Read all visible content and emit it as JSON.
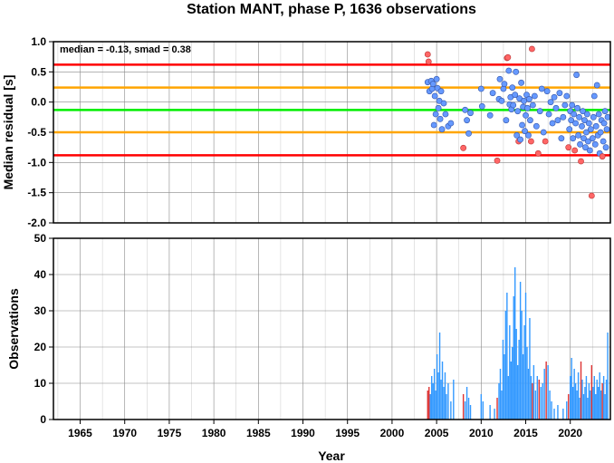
{
  "chart_data": [
    {
      "type": "scatter",
      "title": "Station MANT, phase P, 1636 observations",
      "ylabel": "Median residual [s]",
      "ylim": [
        -2.0,
        1.0
      ],
      "xlim": [
        1962,
        2024.5
      ],
      "y_ticks": [
        "-2.0",
        "-1.5",
        "-1.0",
        "-0.5",
        "0.0",
        "0.5",
        "1.0"
      ],
      "annotation": "median = -0.13, smad = 0.38",
      "grid": true,
      "lines": [
        {
          "value": 0.62,
          "color": "#ff0000"
        },
        {
          "value": 0.24,
          "color": "#ffa500"
        },
        {
          "value": -0.13,
          "color": "#00ee00"
        },
        {
          "value": -0.5,
          "color": "#ffa500"
        },
        {
          "value": -0.88,
          "color": "#ff0000"
        }
      ],
      "colors": {
        "inlier": "#6699ff",
        "outlier": "#ff6666"
      },
      "points": [
        {
          "x": 2004.0,
          "y": 0.79,
          "outlier": true
        },
        {
          "x": 2004.1,
          "y": 0.67,
          "outlier": true
        },
        {
          "x": 2004.0,
          "y": 0.33
        },
        {
          "x": 2004.2,
          "y": 0.18
        },
        {
          "x": 2004.4,
          "y": 0.35
        },
        {
          "x": 2004.5,
          "y": 0.22
        },
        {
          "x": 2004.6,
          "y": 0.3
        },
        {
          "x": 2004.7,
          "y": -0.38
        },
        {
          "x": 2004.8,
          "y": 0.1
        },
        {
          "x": 2004.9,
          "y": -0.2
        },
        {
          "x": 2005.0,
          "y": 0.38
        },
        {
          "x": 2005.1,
          "y": 0.23
        },
        {
          "x": 2005.2,
          "y": -0.1
        },
        {
          "x": 2005.3,
          "y": 0.02
        },
        {
          "x": 2005.4,
          "y": -0.28
        },
        {
          "x": 2005.5,
          "y": 0.18
        },
        {
          "x": 2005.6,
          "y": -0.45
        },
        {
          "x": 2005.8,
          "y": -0.02
        },
        {
          "x": 2006.0,
          "y": -0.2
        },
        {
          "x": 2006.3,
          "y": -0.4
        },
        {
          "x": 2006.6,
          "y": -0.35
        },
        {
          "x": 2008.0,
          "y": -0.76,
          "outlier": true
        },
        {
          "x": 2008.2,
          "y": -0.13
        },
        {
          "x": 2008.4,
          "y": -0.3
        },
        {
          "x": 2008.6,
          "y": -0.52
        },
        {
          "x": 2008.8,
          "y": -0.18
        },
        {
          "x": 2010.0,
          "y": 0.22
        },
        {
          "x": 2010.1,
          "y": -0.07
        },
        {
          "x": 2011.0,
          "y": -0.22
        },
        {
          "x": 2011.3,
          "y": 0.15
        },
        {
          "x": 2011.8,
          "y": -0.97,
          "outlier": true
        },
        {
          "x": 2012.0,
          "y": 0.05
        },
        {
          "x": 2012.1,
          "y": 0.38
        },
        {
          "x": 2012.3,
          "y": 0.02
        },
        {
          "x": 2012.5,
          "y": 0.22
        },
        {
          "x": 2012.6,
          "y": 0.3
        },
        {
          "x": 2012.8,
          "y": -0.3
        },
        {
          "x": 2012.9,
          "y": 0.73,
          "outlier": true
        },
        {
          "x": 2013.0,
          "y": 0.74,
          "outlier": true
        },
        {
          "x": 2013.1,
          "y": 0.52
        },
        {
          "x": 2013.2,
          "y": -0.04
        },
        {
          "x": 2013.3,
          "y": 0.08
        },
        {
          "x": 2013.4,
          "y": -0.12
        },
        {
          "x": 2013.5,
          "y": 0.24
        },
        {
          "x": 2013.6,
          "y": -0.05
        },
        {
          "x": 2013.8,
          "y": 0.12
        },
        {
          "x": 2013.9,
          "y": 0.5
        },
        {
          "x": 2014.0,
          "y": -0.55
        },
        {
          "x": 2014.1,
          "y": -0.15
        },
        {
          "x": 2014.2,
          "y": -0.65,
          "outlier": true
        },
        {
          "x": 2014.3,
          "y": 0.06
        },
        {
          "x": 2014.4,
          "y": -0.62
        },
        {
          "x": 2014.5,
          "y": 0.32
        },
        {
          "x": 2014.6,
          "y": -0.38
        },
        {
          "x": 2014.7,
          "y": -0.08
        },
        {
          "x": 2014.8,
          "y": 0.02
        },
        {
          "x": 2014.9,
          "y": -0.48
        },
        {
          "x": 2015.0,
          "y": -0.22
        },
        {
          "x": 2015.1,
          "y": 0.12
        },
        {
          "x": 2015.2,
          "y": -0.1
        },
        {
          "x": 2015.3,
          "y": -0.55
        },
        {
          "x": 2015.4,
          "y": 0.05
        },
        {
          "x": 2015.5,
          "y": -0.3
        },
        {
          "x": 2015.6,
          "y": -0.65,
          "outlier": true
        },
        {
          "x": 2015.7,
          "y": 0.88,
          "outlier": true
        },
        {
          "x": 2015.8,
          "y": -0.05
        },
        {
          "x": 2016.0,
          "y": 0.1
        },
        {
          "x": 2016.2,
          "y": -0.4
        },
        {
          "x": 2016.4,
          "y": -0.85,
          "outlier": true
        },
        {
          "x": 2016.6,
          "y": -0.15
        },
        {
          "x": 2016.8,
          "y": 0.22
        },
        {
          "x": 2017.0,
          "y": -0.5
        },
        {
          "x": 2017.2,
          "y": -0.65,
          "outlier": true
        },
        {
          "x": 2017.4,
          "y": 0.18
        },
        {
          "x": 2017.6,
          "y": -0.2
        },
        {
          "x": 2017.8,
          "y": 0.0
        },
        {
          "x": 2018.0,
          "y": -0.35
        },
        {
          "x": 2018.2,
          "y": 0.08
        },
        {
          "x": 2018.4,
          "y": -0.1
        },
        {
          "x": 2018.6,
          "y": -0.3
        },
        {
          "x": 2018.8,
          "y": 0.15
        },
        {
          "x": 2019.0,
          "y": -0.6
        },
        {
          "x": 2019.2,
          "y": -0.25
        },
        {
          "x": 2019.4,
          "y": -0.05
        },
        {
          "x": 2019.6,
          "y": 0.1
        },
        {
          "x": 2019.8,
          "y": -0.75,
          "outlier": true
        },
        {
          "x": 2019.9,
          "y": -0.45
        },
        {
          "x": 2020.0,
          "y": -0.15
        },
        {
          "x": 2020.1,
          "y": -0.3
        },
        {
          "x": 2020.2,
          "y": -0.05
        },
        {
          "x": 2020.3,
          "y": -0.6
        },
        {
          "x": 2020.4,
          "y": -0.2
        },
        {
          "x": 2020.5,
          "y": -0.8,
          "outlier": true
        },
        {
          "x": 2020.6,
          "y": -0.35
        },
        {
          "x": 2020.7,
          "y": 0.45
        },
        {
          "x": 2020.8,
          "y": -0.1
        },
        {
          "x": 2020.9,
          "y": -0.55
        },
        {
          "x": 2021.0,
          "y": -0.25
        },
        {
          "x": 2021.1,
          "y": -0.7
        },
        {
          "x": 2021.2,
          "y": -0.98,
          "outlier": true
        },
        {
          "x": 2021.3,
          "y": -0.4
        },
        {
          "x": 2021.4,
          "y": -0.15
        },
        {
          "x": 2021.5,
          "y": -0.6
        },
        {
          "x": 2021.6,
          "y": -0.3
        },
        {
          "x": 2021.7,
          "y": -0.75
        },
        {
          "x": 2021.8,
          "y": -0.5
        },
        {
          "x": 2021.9,
          "y": -0.2
        },
        {
          "x": 2022.0,
          "y": -0.65
        },
        {
          "x": 2022.1,
          "y": -0.35
        },
        {
          "x": 2022.2,
          "y": -0.8
        },
        {
          "x": 2022.3,
          "y": -0.45
        },
        {
          "x": 2022.4,
          "y": -1.55,
          "outlier": true
        },
        {
          "x": 2022.5,
          "y": -0.6
        },
        {
          "x": 2022.6,
          "y": -0.25
        },
        {
          "x": 2022.7,
          "y": 0.1
        },
        {
          "x": 2022.8,
          "y": -0.7
        },
        {
          "x": 2022.9,
          "y": -0.4
        },
        {
          "x": 2023.0,
          "y": 0.28
        },
        {
          "x": 2023.1,
          "y": -0.55
        },
        {
          "x": 2023.2,
          "y": -0.2
        },
        {
          "x": 2023.3,
          "y": -0.85
        },
        {
          "x": 2023.4,
          "y": -0.5
        },
        {
          "x": 2023.5,
          "y": -0.3
        },
        {
          "x": 2023.6,
          "y": -0.9,
          "outlier": true
        },
        {
          "x": 2023.7,
          "y": -0.65
        },
        {
          "x": 2023.8,
          "y": -0.35
        },
        {
          "x": 2023.9,
          "y": -0.15
        },
        {
          "x": 2024.0,
          "y": -0.75
        },
        {
          "x": 2024.1,
          "y": -0.45
        },
        {
          "x": 2024.2,
          "y": -0.25
        }
      ]
    },
    {
      "type": "bar",
      "xlabel": "Year",
      "ylabel": "Observations",
      "ylim": [
        0,
        50
      ],
      "xlim": [
        1962,
        2024.5
      ],
      "y_ticks": [
        "0",
        "10",
        "20",
        "30",
        "40",
        "50"
      ],
      "x_ticks": [
        "1965",
        "1970",
        "1975",
        "1980",
        "1985",
        "1990",
        "1995",
        "2000",
        "2005",
        "2010",
        "2015",
        "2020"
      ],
      "grid": true,
      "colors": {
        "main": "#3399ff",
        "highlight": "#dd3333"
      },
      "bars": [
        {
          "x": 2004.0,
          "v": 8,
          "red": true
        },
        {
          "x": 2004.15,
          "v": 9,
          "red": true
        },
        {
          "x": 2004.3,
          "v": 7
        },
        {
          "x": 2004.45,
          "v": 12
        },
        {
          "x": 2004.6,
          "v": 10
        },
        {
          "x": 2004.75,
          "v": 14
        },
        {
          "x": 2004.9,
          "v": 8
        },
        {
          "x": 2005.05,
          "v": 18
        },
        {
          "x": 2005.2,
          "v": 13
        },
        {
          "x": 2005.35,
          "v": 24
        },
        {
          "x": 2005.5,
          "v": 11
        },
        {
          "x": 2005.65,
          "v": 16
        },
        {
          "x": 2005.8,
          "v": 9
        },
        {
          "x": 2005.95,
          "v": 13
        },
        {
          "x": 2006.1,
          "v": 7
        },
        {
          "x": 2006.3,
          "v": 10
        },
        {
          "x": 2006.6,
          "v": 5
        },
        {
          "x": 2006.9,
          "v": 11
        },
        {
          "x": 2008.0,
          "v": 7,
          "red": true
        },
        {
          "x": 2008.2,
          "v": 5
        },
        {
          "x": 2008.4,
          "v": 9
        },
        {
          "x": 2008.6,
          "v": 6
        },
        {
          "x": 2008.8,
          "v": 4
        },
        {
          "x": 2010.0,
          "v": 7
        },
        {
          "x": 2010.2,
          "v": 5
        },
        {
          "x": 2011.0,
          "v": 4
        },
        {
          "x": 2011.5,
          "v": 3
        },
        {
          "x": 2011.8,
          "v": 6,
          "red": true
        },
        {
          "x": 2012.0,
          "v": 10
        },
        {
          "x": 2012.15,
          "v": 14
        },
        {
          "x": 2012.3,
          "v": 8
        },
        {
          "x": 2012.45,
          "v": 22
        },
        {
          "x": 2012.6,
          "v": 18
        },
        {
          "x": 2012.75,
          "v": 30
        },
        {
          "x": 2012.9,
          "v": 35
        },
        {
          "x": 2013.05,
          "v": 12
        },
        {
          "x": 2013.2,
          "v": 26
        },
        {
          "x": 2013.35,
          "v": 16
        },
        {
          "x": 2013.5,
          "v": 20
        },
        {
          "x": 2013.65,
          "v": 34
        },
        {
          "x": 2013.8,
          "v": 42
        },
        {
          "x": 2013.95,
          "v": 25
        },
        {
          "x": 2014.1,
          "v": 15
        },
        {
          "x": 2014.25,
          "v": 22
        },
        {
          "x": 2014.4,
          "v": 38
        },
        {
          "x": 2014.55,
          "v": 30
        },
        {
          "x": 2014.7,
          "v": 18
        },
        {
          "x": 2014.85,
          "v": 26
        },
        {
          "x": 2015.0,
          "v": 35
        },
        {
          "x": 2015.15,
          "v": 20
        },
        {
          "x": 2015.3,
          "v": 14
        },
        {
          "x": 2015.45,
          "v": 28
        },
        {
          "x": 2015.6,
          "v": 12
        },
        {
          "x": 2015.75,
          "v": 10,
          "red": true
        },
        {
          "x": 2015.9,
          "v": 15
        },
        {
          "x": 2016.1,
          "v": 8
        },
        {
          "x": 2016.3,
          "v": 12
        },
        {
          "x": 2016.5,
          "v": 11,
          "red": true
        },
        {
          "x": 2016.7,
          "v": 9
        },
        {
          "x": 2016.9,
          "v": 10
        },
        {
          "x": 2017.1,
          "v": 14
        },
        {
          "x": 2017.3,
          "v": 16,
          "red": true
        },
        {
          "x": 2017.5,
          "v": 15
        },
        {
          "x": 2017.7,
          "v": 8
        },
        {
          "x": 2017.9,
          "v": 5
        },
        {
          "x": 2018.2,
          "v": 3
        },
        {
          "x": 2018.6,
          "v": 4
        },
        {
          "x": 2019.2,
          "v": 3
        },
        {
          "x": 2019.6,
          "v": 5
        },
        {
          "x": 2019.8,
          "v": 7,
          "red": true
        },
        {
          "x": 2020.0,
          "v": 12
        },
        {
          "x": 2020.15,
          "v": 17
        },
        {
          "x": 2020.3,
          "v": 9
        },
        {
          "x": 2020.45,
          "v": 14
        },
        {
          "x": 2020.6,
          "v": 10
        },
        {
          "x": 2020.75,
          "v": 8
        },
        {
          "x": 2020.9,
          "v": 13
        },
        {
          "x": 2021.05,
          "v": 6
        },
        {
          "x": 2021.2,
          "v": 16,
          "red": true
        },
        {
          "x": 2021.35,
          "v": 11
        },
        {
          "x": 2021.5,
          "v": 7
        },
        {
          "x": 2021.65,
          "v": 9
        },
        {
          "x": 2021.8,
          "v": 12
        },
        {
          "x": 2021.95,
          "v": 6
        },
        {
          "x": 2022.1,
          "v": 10
        },
        {
          "x": 2022.25,
          "v": 8
        },
        {
          "x": 2022.4,
          "v": 15,
          "red": true
        },
        {
          "x": 2022.55,
          "v": 9
        },
        {
          "x": 2022.7,
          "v": 12
        },
        {
          "x": 2022.85,
          "v": 7
        },
        {
          "x": 2023.0,
          "v": 11
        },
        {
          "x": 2023.15,
          "v": 9
        },
        {
          "x": 2023.3,
          "v": 13
        },
        {
          "x": 2023.45,
          "v": 8
        },
        {
          "x": 2023.6,
          "v": 10,
          "red": true
        },
        {
          "x": 2023.75,
          "v": 12
        },
        {
          "x": 2023.9,
          "v": 7
        },
        {
          "x": 2024.05,
          "v": 11
        },
        {
          "x": 2024.2,
          "v": 24
        }
      ]
    }
  ]
}
